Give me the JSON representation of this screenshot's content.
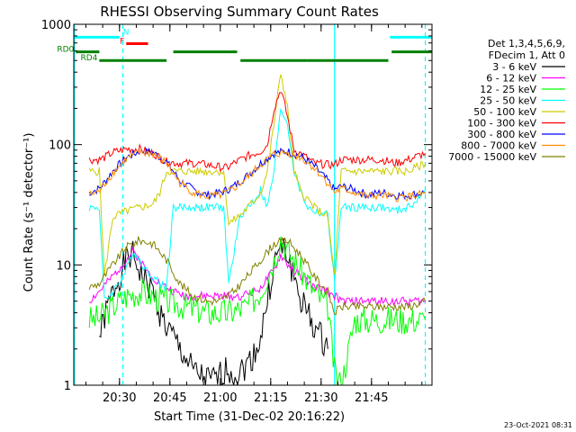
{
  "chart_data": {
    "type": "line",
    "title": "RHESSI Observing Summary Count Rates",
    "xlabel": "Start Time (31-Dec-02 20:16:22)",
    "ylabel": "Count Rate (s⁻¹ detector⁻¹)",
    "x_unit": "minutes of day (UT)",
    "xlim": [
      1216.4,
      1323
    ],
    "ylim": [
      1,
      1000
    ],
    "y_scale": "log",
    "x_ticks": [
      {
        "v": 1230,
        "label": "20:30"
      },
      {
        "v": 1245,
        "label": "20:45"
      },
      {
        "v": 1260,
        "label": "21:00"
      },
      {
        "v": 1275,
        "label": "21:15"
      },
      {
        "v": 1290,
        "label": "21:30"
      },
      {
        "v": 1305,
        "label": "21:45"
      }
    ],
    "y_ticks": [
      {
        "v": 1,
        "label": "1"
      },
      {
        "v": 10,
        "label": "10"
      },
      {
        "v": 100,
        "label": "100"
      },
      {
        "v": 1000,
        "label": "1000"
      }
    ],
    "legend_header": [
      "Det 1,3,4,5,6,9,",
      "FDecim 1, Att 0"
    ],
    "legend_position": "right",
    "series": [
      {
        "name": "3 - 6 keV",
        "color": "#000000",
        "x": [
          1224,
          1226,
          1228,
          1230,
          1232,
          1234,
          1236,
          1238,
          1240,
          1242,
          1244,
          1246,
          1248,
          1250,
          1252,
          1254,
          1256,
          1258,
          1260,
          1262,
          1264,
          1266,
          1268,
          1270,
          1272,
          1274,
          1276,
          1278,
          1280,
          1282,
          1284,
          1286,
          1288,
          1290,
          1292
        ],
        "y": [
          2.5,
          4,
          6,
          8,
          11,
          12,
          9,
          7,
          6,
          4,
          3,
          2.5,
          2,
          1.6,
          1.3,
          1.2,
          1.1,
          1.1,
          1.2,
          1.4,
          1.2,
          1.3,
          1.5,
          1.8,
          2.5,
          5,
          10,
          14,
          12,
          8,
          5,
          4,
          3,
          2.5,
          2
        ]
      },
      {
        "name": "6 - 12 keV",
        "color": "#ff00ff",
        "x": [
          1221,
          1224,
          1228,
          1232,
          1234,
          1236,
          1238,
          1240,
          1242,
          1246,
          1250,
          1254,
          1258,
          1262,
          1266,
          1270,
          1272,
          1276,
          1278,
          1280,
          1284,
          1288,
          1292,
          1294,
          1296,
          1300,
          1304,
          1308,
          1312,
          1316,
          1321
        ],
        "y": [
          5,
          6,
          8,
          11,
          13,
          11,
          9,
          8,
          7,
          6,
          5.5,
          5.5,
          5.5,
          5.5,
          5.5,
          6,
          6.5,
          9,
          12,
          10,
          8,
          6.5,
          6,
          5.5,
          5,
          5,
          5,
          5,
          5,
          5,
          5
        ]
      },
      {
        "name": "12 - 25 keV",
        "color": "#00ff00",
        "x": [
          1221,
          1224,
          1228,
          1232,
          1236,
          1240,
          1244,
          1250,
          1256,
          1262,
          1268,
          1272,
          1276,
          1278,
          1280,
          1284,
          1288,
          1292,
          1294,
          1296,
          1300,
          1304,
          1308,
          1312,
          1316,
          1321
        ],
        "y": [
          3.5,
          3.6,
          4.5,
          5.5,
          6,
          5.5,
          5,
          4.5,
          4,
          4,
          4.5,
          6,
          11,
          17,
          13,
          9,
          6,
          4.5,
          1.3,
          1,
          3.5,
          3.5,
          3.5,
          3.5,
          3.5,
          3.5
        ]
      },
      {
        "name": "25 - 50 keV",
        "color": "#00ffff",
        "x": [
          1221,
          1224,
          1225.5,
          1228,
          1232,
          1234,
          1236,
          1238,
          1240,
          1242,
          1244,
          1246,
          1250,
          1254,
          1258,
          1261,
          1262.5,
          1266,
          1270,
          1272,
          1274,
          1276,
          1278,
          1280,
          1282,
          1284,
          1286,
          1288,
          1292,
          1294,
          1296,
          1298,
          1300,
          1304,
          1308,
          1312,
          1316,
          1321
        ],
        "y": [
          30,
          30,
          5,
          6,
          9,
          13,
          11,
          9,
          8,
          7,
          6.5,
          30,
          30,
          30,
          30,
          30,
          7,
          26,
          34,
          42,
          30,
          60,
          200,
          150,
          60,
          40,
          30,
          28,
          26,
          7,
          30,
          30,
          30,
          30,
          30,
          28,
          30,
          40
        ]
      },
      {
        "name": "50 - 100 keV",
        "color": "#cccc00",
        "x": [
          1221,
          1224,
          1225.5,
          1228,
          1232,
          1236,
          1240,
          1242,
          1244,
          1246,
          1250,
          1254,
          1258,
          1261,
          1262.5,
          1266,
          1270,
          1272,
          1274,
          1276,
          1278,
          1280,
          1282,
          1284,
          1286,
          1288,
          1292,
          1294,
          1296,
          1298,
          1300,
          1304,
          1308,
          1312,
          1316,
          1321
        ],
        "y": [
          60,
          60,
          8,
          25,
          28,
          30,
          32,
          40,
          60,
          60,
          60,
          60,
          60,
          60,
          22,
          26,
          34,
          40,
          60,
          150,
          400,
          200,
          60,
          40,
          35,
          30,
          25,
          8,
          60,
          60,
          60,
          60,
          60,
          60,
          60,
          70
        ]
      },
      {
        "name": "100 - 300 keV",
        "color": "#ff0000",
        "x": [
          1221,
          1224,
          1225.5,
          1228,
          1232,
          1236,
          1240,
          1244,
          1248,
          1252,
          1256,
          1260,
          1262,
          1264,
          1268,
          1272,
          1274,
          1276,
          1278,
          1280,
          1282,
          1284,
          1288,
          1292,
          1294,
          1296,
          1300,
          1304,
          1308,
          1312,
          1316,
          1321
        ],
        "y": [
          75,
          75,
          78,
          86,
          92,
          92,
          85,
          72,
          70,
          70,
          68,
          65,
          64,
          70,
          80,
          88,
          100,
          200,
          290,
          170,
          90,
          84,
          70,
          68,
          68,
          75,
          75,
          75,
          75,
          70,
          75,
          85
        ]
      },
      {
        "name": "300 - 800 keV",
        "color": "#0000ff",
        "x": [
          1221,
          1224,
          1228,
          1232,
          1236,
          1240,
          1244,
          1248,
          1252,
          1256,
          1260,
          1262,
          1264,
          1268,
          1272,
          1276,
          1280,
          1284,
          1288,
          1292,
          1294,
          1296,
          1300,
          1304,
          1308,
          1312,
          1316,
          1321
        ],
        "y": [
          40,
          43,
          60,
          78,
          88,
          86,
          72,
          50,
          42,
          38,
          40,
          42,
          45,
          55,
          70,
          85,
          88,
          80,
          66,
          50,
          42,
          45,
          42,
          38,
          40,
          38,
          38,
          40
        ]
      },
      {
        "name": "800 - 7000 keV",
        "color": "#ff8c00",
        "x": [
          1221,
          1224,
          1228,
          1232,
          1236,
          1240,
          1244,
          1248,
          1252,
          1256,
          1260,
          1262,
          1264,
          1268,
          1272,
          1276,
          1280,
          1284,
          1288,
          1292,
          1294,
          1296,
          1300,
          1304,
          1308,
          1312,
          1316,
          1321
        ],
        "y": [
          38,
          41,
          58,
          76,
          86,
          84,
          70,
          48,
          40,
          37,
          38,
          40,
          43,
          53,
          68,
          83,
          86,
          78,
          64,
          48,
          40,
          43,
          40,
          37,
          38,
          36,
          37,
          39
        ]
      },
      {
        "name": "7000 - 15000 keV",
        "color": "#808000",
        "x": [
          1221,
          1224,
          1228,
          1232,
          1236,
          1240,
          1244,
          1248,
          1252,
          1256,
          1260,
          1262,
          1264,
          1268,
          1272,
          1276,
          1280,
          1284,
          1288,
          1292,
          1294,
          1296,
          1300,
          1304,
          1308,
          1312,
          1316,
          1321
        ],
        "y": [
          6.5,
          7,
          10,
          14,
          16,
          15,
          11,
          7,
          5.5,
          5,
          5,
          5.5,
          6,
          8,
          11,
          15,
          16,
          12,
          8,
          6,
          4,
          4.5,
          4.5,
          4.5,
          4.5,
          4.5,
          4.5,
          5
        ]
      }
    ],
    "annotations": {
      "flag_bars": [
        {
          "label": "N",
          "color": "#00ffff",
          "level": 780,
          "segments": [
            [
              1216.4,
              1230
            ]
          ]
        },
        {
          "label": "",
          "color": "#00ffff",
          "level": 780,
          "segments": [
            [
              1310.5,
              1323
            ]
          ]
        },
        {
          "label": "F",
          "color": "#ff0000",
          "level": 690,
          "segments": [
            [
              1232,
              1238.5
            ]
          ]
        },
        {
          "label": "RD0",
          "color": "#008000",
          "level": 590,
          "segments": [
            [
              1217,
              1224
            ]
          ]
        },
        {
          "label": "",
          "color": "#008000",
          "level": 590,
          "segments": [
            [
              1246,
              1265
            ],
            [
              1311,
              1323
            ]
          ]
        },
        {
          "label": "RD4",
          "color": "#008000",
          "level": 500,
          "segments": [
            [
              1224,
              1244
            ]
          ]
        },
        {
          "label": "",
          "color": "#008000",
          "level": 500,
          "segments": [
            [
              1266,
              1286
            ],
            [
              1286,
              1310
            ]
          ]
        }
      ],
      "vertical_lines": [
        {
          "x": 1216.6,
          "color": "#00ffff",
          "style": "solid"
        },
        {
          "x": 1231.0,
          "color": "#00ffff",
          "style": "dashed"
        },
        {
          "x": 1294.0,
          "color": "#00ffff",
          "style": "solid"
        },
        {
          "x": 1321.0,
          "color": "#00ffff",
          "style": "dashed"
        }
      ]
    },
    "timestamp": "23-Oct-2021 08:31"
  }
}
